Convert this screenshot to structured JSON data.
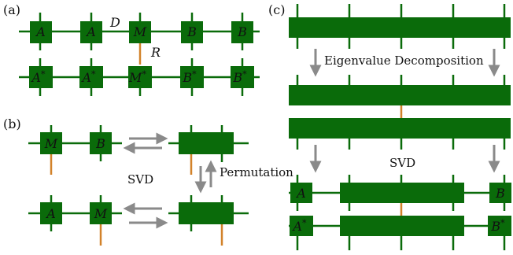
{
  "colors": {
    "tensor": "#0a6b0a",
    "bond": "#0a6b0a",
    "physical_leg": "#d2822a",
    "arrow": "#8a8a8a",
    "text": "#111111"
  },
  "panel_a": {
    "label": "(a)",
    "top_row": [
      "A",
      "A",
      "M",
      "B",
      "B"
    ],
    "bottom_row": [
      "A",
      "A",
      "M",
      "B",
      "B"
    ],
    "conj_mark": "*",
    "bond_label": "D",
    "physical_label": "R"
  },
  "panel_b": {
    "label": "(b)",
    "row1": [
      "M",
      "B"
    ],
    "row2": [
      "A",
      "M"
    ],
    "svd_label": "SVD",
    "permutation_label": "Permutation"
  },
  "panel_c": {
    "label": "(c)",
    "eig_label": "Eigenvalue Decomposition",
    "svd_label": "SVD",
    "left_tensor": "A",
    "right_tensor": "B",
    "conj_mark": "*"
  }
}
